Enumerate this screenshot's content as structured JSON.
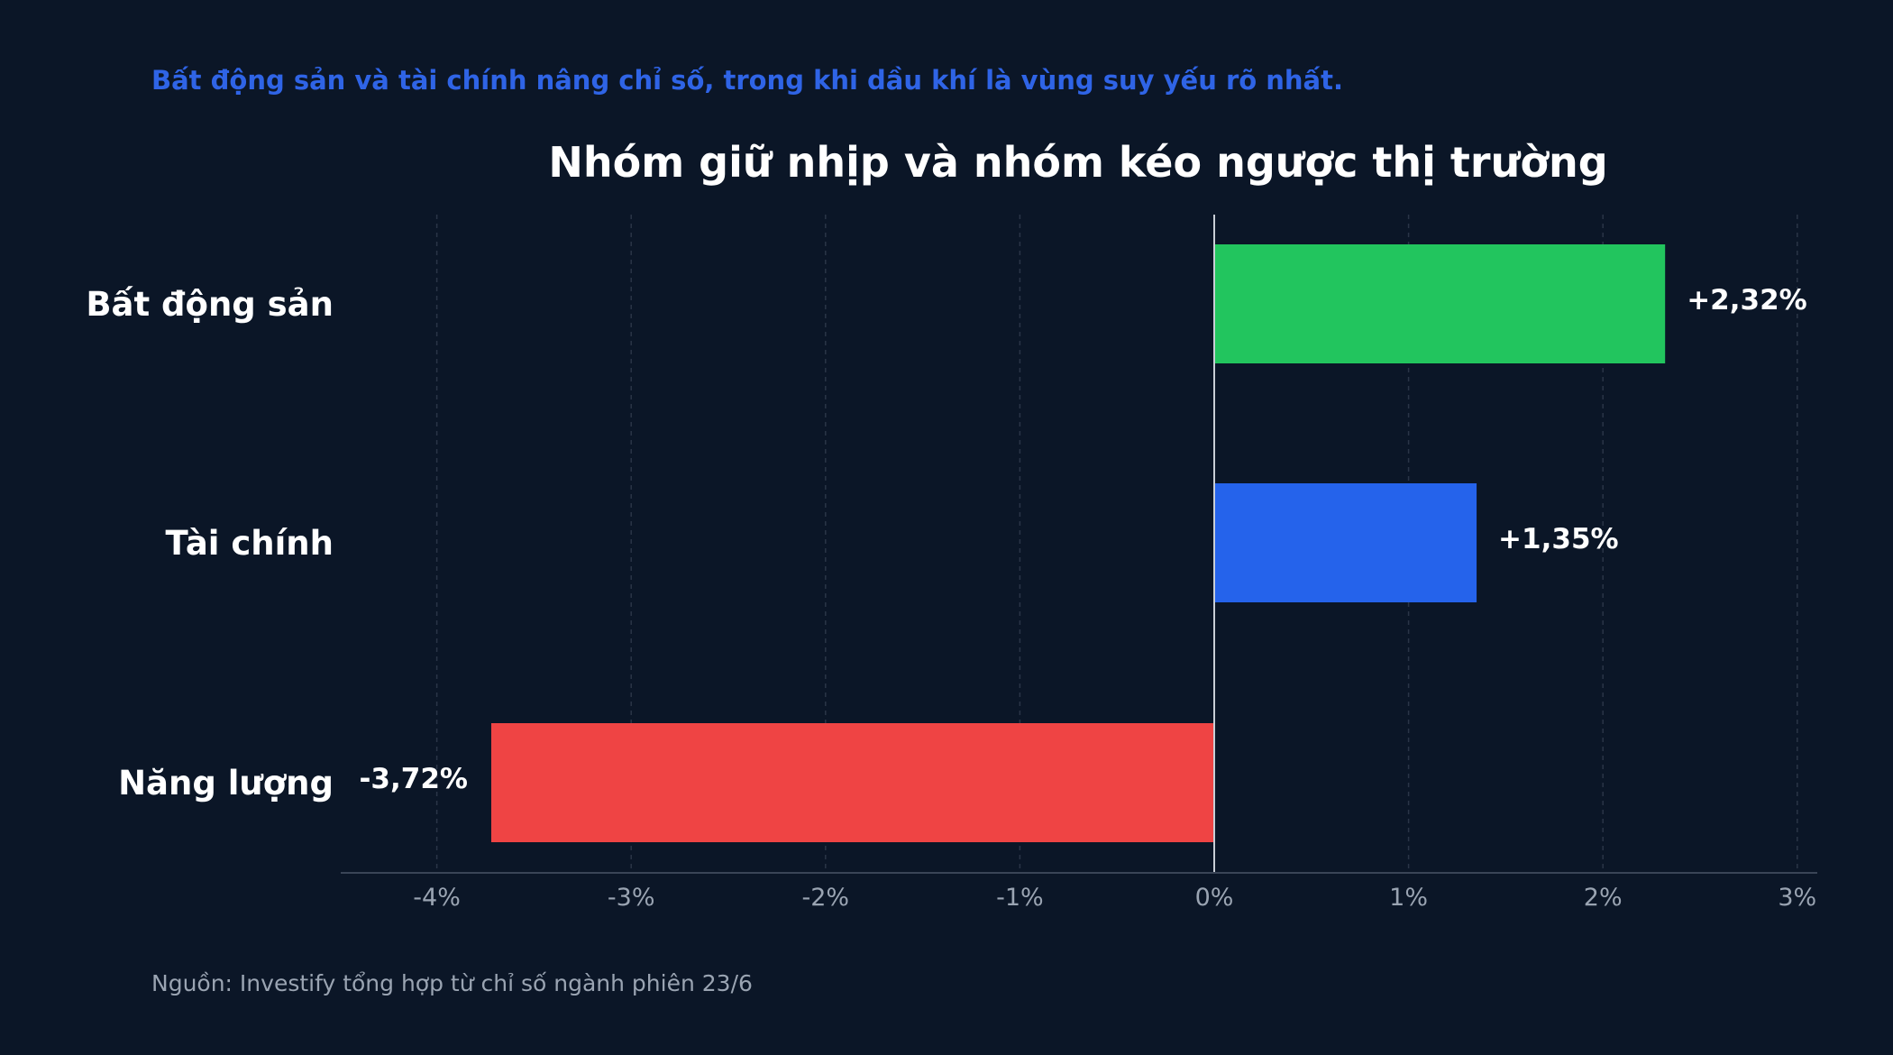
{
  "header": {
    "subtitle": "Bất động sản và tài chính nâng chỉ số, trong khi dầu khí là vùng suy yếu rõ nhất."
  },
  "footer": {
    "source": "Nguồn: Investify tổng hợp từ chỉ số ngành phiên 23/6"
  },
  "colors": {
    "background": "#0b1627",
    "positive_strong": "#22c55e",
    "positive": "#2563eb",
    "negative": "#ef4444",
    "subtitle": "#2f64e6",
    "axis_text": "#9aa4b2",
    "grid": "#2a3547",
    "zero_line": "#c9ced6"
  },
  "chart_data": {
    "type": "bar",
    "orientation": "horizontal",
    "title": "Nhóm giữ nhịp và nhóm kéo ngược thị trường",
    "categories": [
      "Bất động sản",
      "Tài chính",
      "Năng lượng"
    ],
    "values": [
      2.32,
      1.35,
      -3.72
    ],
    "value_labels": [
      "+2,32%",
      "+1,35%",
      "-3,72%"
    ],
    "bar_colors": [
      "#22c55e",
      "#2563eb",
      "#ef4444"
    ],
    "xlim": [
      -4.5,
      3.1
    ],
    "xticks": [
      -4,
      -3,
      -2,
      -1,
      0,
      1,
      2,
      3
    ],
    "xtick_labels": [
      "-4%",
      "-3%",
      "-2%",
      "-1%",
      "0%",
      "1%",
      "2%",
      "3%"
    ],
    "xlabel": "",
    "ylabel": "",
    "grid": true,
    "legend": "none"
  }
}
